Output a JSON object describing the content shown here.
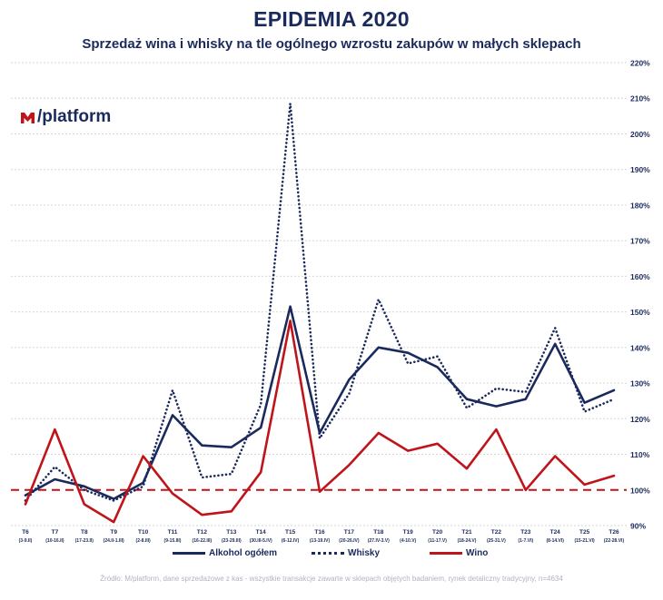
{
  "title": "EPIDEMIA 2020",
  "subtitle": "Sprzedaż wina i whisky na tle ogólnego wzrostu zakupów w małych sklepach",
  "logo": {
    "mark": "M",
    "text": "/platform"
  },
  "source": "Źródło: M/platform, dane sprzedażowe z kas - wszystkie transakcje zawarte w sklepach objętych badaniem, rynek detaliczny tradycyjny, n=4634",
  "colors": {
    "navy": "#1b2a5c",
    "red": "#c0141b",
    "grid": "#d6d6d6"
  },
  "chart_data": {
    "type": "line",
    "title": "EPIDEMIA 2020",
    "ylim": [
      90,
      220
    ],
    "yticks": [
      "90%",
      "100%",
      "110%",
      "120%",
      "130%",
      "140%",
      "150%",
      "160%",
      "170%",
      "180%",
      "190%",
      "200%",
      "210%",
      "220%"
    ],
    "ytick_values": [
      90,
      100,
      110,
      120,
      130,
      140,
      150,
      160,
      170,
      180,
      190,
      200,
      210,
      220
    ],
    "categories": [
      {
        "week": "T6",
        "dates": "(3-9.II)"
      },
      {
        "week": "T7",
        "dates": "(10-16.II)"
      },
      {
        "week": "T8",
        "dates": "(17-23.II)"
      },
      {
        "week": "T9",
        "dates": "(24.II-1.III)"
      },
      {
        "week": "T10",
        "dates": "(2-8.III)"
      },
      {
        "week": "T11",
        "dates": "(9-15.III)"
      },
      {
        "week": "T12",
        "dates": "(16-22.III)"
      },
      {
        "week": "T13",
        "dates": "(23-29.III)"
      },
      {
        "week": "T14",
        "dates": "(30.III-5.IV)"
      },
      {
        "week": "T15",
        "dates": "(6-12.IV)"
      },
      {
        "week": "T16",
        "dates": "(13-19.IV)"
      },
      {
        "week": "T17",
        "dates": "(20-26.IV)"
      },
      {
        "week": "T18",
        "dates": "(27.IV-3.V)"
      },
      {
        "week": "T19",
        "dates": "(4-10.V)"
      },
      {
        "week": "T20",
        "dates": "(11-17.V)"
      },
      {
        "week": "T21",
        "dates": "(18-24.V)"
      },
      {
        "week": "T22",
        "dates": "(25-31.V)"
      },
      {
        "week": "T23",
        "dates": "(1-7.VI)"
      },
      {
        "week": "T24",
        "dates": "(8-14.VI)"
      },
      {
        "week": "T25",
        "dates": "(15-21.VI)"
      },
      {
        "week": "T26",
        "dates": "(22-28.VI)"
      }
    ],
    "reference_line": 100,
    "series": [
      {
        "name": "Alkohol ogółem",
        "style": "solid",
        "color": "#1b2a5c",
        "values": [
          98.5,
          103,
          101,
          97.5,
          102,
          121,
          112.5,
          112,
          117.5,
          151.5,
          116,
          131,
          140,
          138.5,
          134.5,
          125.5,
          123.5,
          125.5,
          141,
          124.5,
          128
        ]
      },
      {
        "name": "Whisky",
        "style": "dotted",
        "color": "#1b2a5c",
        "values": [
          97,
          106.5,
          100,
          97,
          101,
          128,
          103.5,
          104.5,
          124,
          208.5,
          114.5,
          127,
          153.5,
          135.5,
          137.5,
          123,
          128.5,
          127.5,
          145.5,
          122,
          125.5
        ]
      },
      {
        "name": "Wino",
        "style": "solid",
        "color": "#c0141b",
        "values": [
          96,
          117,
          96,
          91,
          109.5,
          99,
          93,
          94,
          105,
          147.5,
          99.5,
          107,
          116,
          111,
          113,
          106,
          117,
          100,
          109.5,
          101.5,
          104
        ]
      }
    ],
    "legend": [
      "Alkohol ogółem",
      "Whisky",
      "Wino"
    ]
  }
}
